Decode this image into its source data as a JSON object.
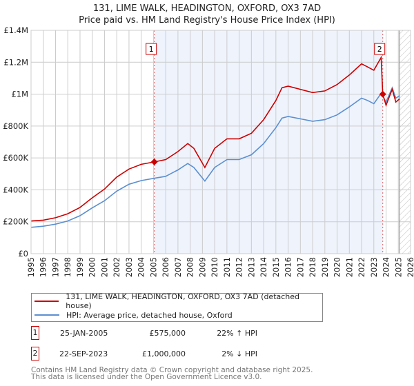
{
  "title": "131, LIME WALK, HEADINGTON, OXFORD, OX3 7AD",
  "subtitle": "Price paid vs. HM Land Registry's House Price Index (HPI)",
  "chart_data": {
    "type": "line",
    "xlim": [
      1995,
      2026
    ],
    "ylim": [
      0,
      1400000
    ],
    "x_ticks": [
      "1995",
      "1996",
      "1997",
      "1998",
      "1999",
      "2000",
      "2001",
      "2002",
      "2003",
      "2004",
      "2005",
      "2006",
      "2007",
      "2008",
      "2009",
      "2010",
      "2011",
      "2012",
      "2013",
      "2014",
      "2015",
      "2016",
      "2017",
      "2018",
      "2019",
      "2020",
      "2021",
      "2022",
      "2023",
      "2024",
      "2025",
      "2026"
    ],
    "y_ticks": [
      {
        "v": 0,
        "label": "£0"
      },
      {
        "v": 200000,
        "label": "£200K"
      },
      {
        "v": 400000,
        "label": "£400K"
      },
      {
        "v": 600000,
        "label": "£600K"
      },
      {
        "v": 800000,
        "label": "£800K"
      },
      {
        "v": 1000000,
        "label": "£1M"
      },
      {
        "v": 1200000,
        "label": "£1.2M"
      },
      {
        "v": 1400000,
        "label": "£1.4M"
      }
    ],
    "series": [
      {
        "name": "131, LIME WALK, HEADINGTON, OXFORD, OX3 7AD (detached house)",
        "color": "#cc0000",
        "x": [
          1995,
          1996,
          1997,
          1998,
          1999,
          2000,
          2001,
          2002,
          2003,
          2004,
          2005.07,
          2006,
          2007,
          2007.8,
          2008.3,
          2009.2,
          2010,
          2011,
          2012,
          2013,
          2014,
          2015,
          2015.5,
          2016,
          2017,
          2018,
          2019,
          2020,
          2021,
          2022,
          2022.5,
          2023,
          2023.6,
          2023.73,
          2024,
          2024.5,
          2024.8,
          2025.1
        ],
        "y": [
          205000,
          210000,
          225000,
          250000,
          290000,
          350000,
          405000,
          480000,
          530000,
          560000,
          575000,
          590000,
          640000,
          690000,
          660000,
          540000,
          660000,
          720000,
          720000,
          755000,
          840000,
          960000,
          1040000,
          1050000,
          1030000,
          1010000,
          1020000,
          1060000,
          1120000,
          1190000,
          1170000,
          1150000,
          1230000,
          1000000,
          930000,
          1030000,
          950000,
          970000
        ]
      },
      {
        "name": "HPI: Average price, detached house, Oxford",
        "color": "#5b8fd0",
        "x": [
          1995,
          1996,
          1997,
          1998,
          1999,
          2000,
          2001,
          2002,
          2003,
          2004,
          2005,
          2006,
          2007,
          2007.8,
          2008.3,
          2009.2,
          2010,
          2011,
          2012,
          2013,
          2014,
          2015,
          2015.5,
          2016,
          2017,
          2018,
          2019,
          2020,
          2021,
          2022,
          2022.5,
          2023,
          2023.6,
          2024,
          2024.5,
          2024.8,
          2025.1
        ],
        "y": [
          165000,
          172000,
          185000,
          205000,
          238000,
          287000,
          332000,
          392000,
          435000,
          458000,
          472000,
          485000,
          525000,
          565000,
          540000,
          455000,
          540000,
          590000,
          590000,
          620000,
          690000,
          790000,
          850000,
          860000,
          845000,
          830000,
          840000,
          870000,
          920000,
          975000,
          960000,
          940000,
          1005000,
          950000,
          1040000,
          975000,
          990000
        ]
      }
    ],
    "sales": [
      {
        "label": "1",
        "x": 2005.07,
        "y": 575000
      },
      {
        "label": "2",
        "x": 2023.73,
        "y": 1000000
      }
    ],
    "shaded_region": [
      2005.07,
      2023.73
    ],
    "hatched_from": 2025.1
  },
  "legend": {
    "red": "131, LIME WALK, HEADINGTON, OXFORD, OX3 7AD (detached house)",
    "blue": "HPI: Average price, detached house, Oxford"
  },
  "transactions": [
    {
      "n": "1",
      "date": "25-JAN-2005",
      "price": "£575,000",
      "hpi": "22% ↑ HPI"
    },
    {
      "n": "2",
      "date": "22-SEP-2023",
      "price": "£1,000,000",
      "hpi": "2% ↓ HPI"
    }
  ],
  "footer": [
    "Contains HM Land Registry data © Crown copyright and database right 2025.",
    "This data is licensed under the Open Government Licence v3.0."
  ]
}
